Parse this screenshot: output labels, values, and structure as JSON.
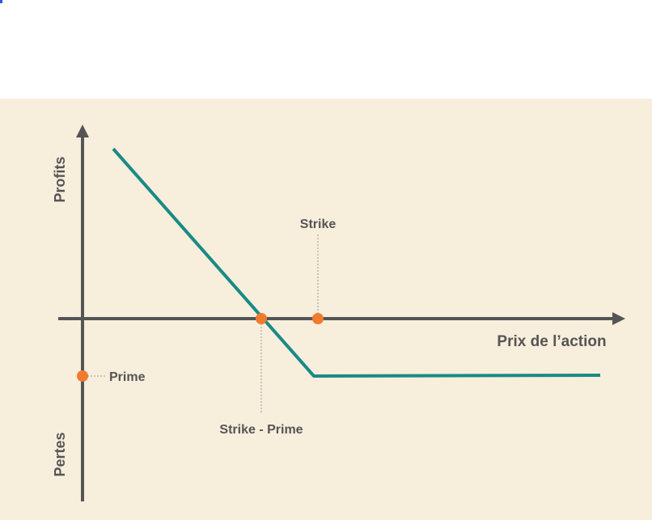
{
  "axes": {
    "y_top_label": "Profits",
    "y_bottom_label": "Pertes",
    "x_label": "Prix de l’action"
  },
  "annotations": {
    "strike": "Strike",
    "breakeven": "Strike - Prime",
    "premium": "Prime"
  },
  "colors": {
    "background": "#f8eedc",
    "axis": "#555555",
    "payoff_line": "#1a8a85",
    "marker": "#f07a2e",
    "guide": "#999999"
  }
}
